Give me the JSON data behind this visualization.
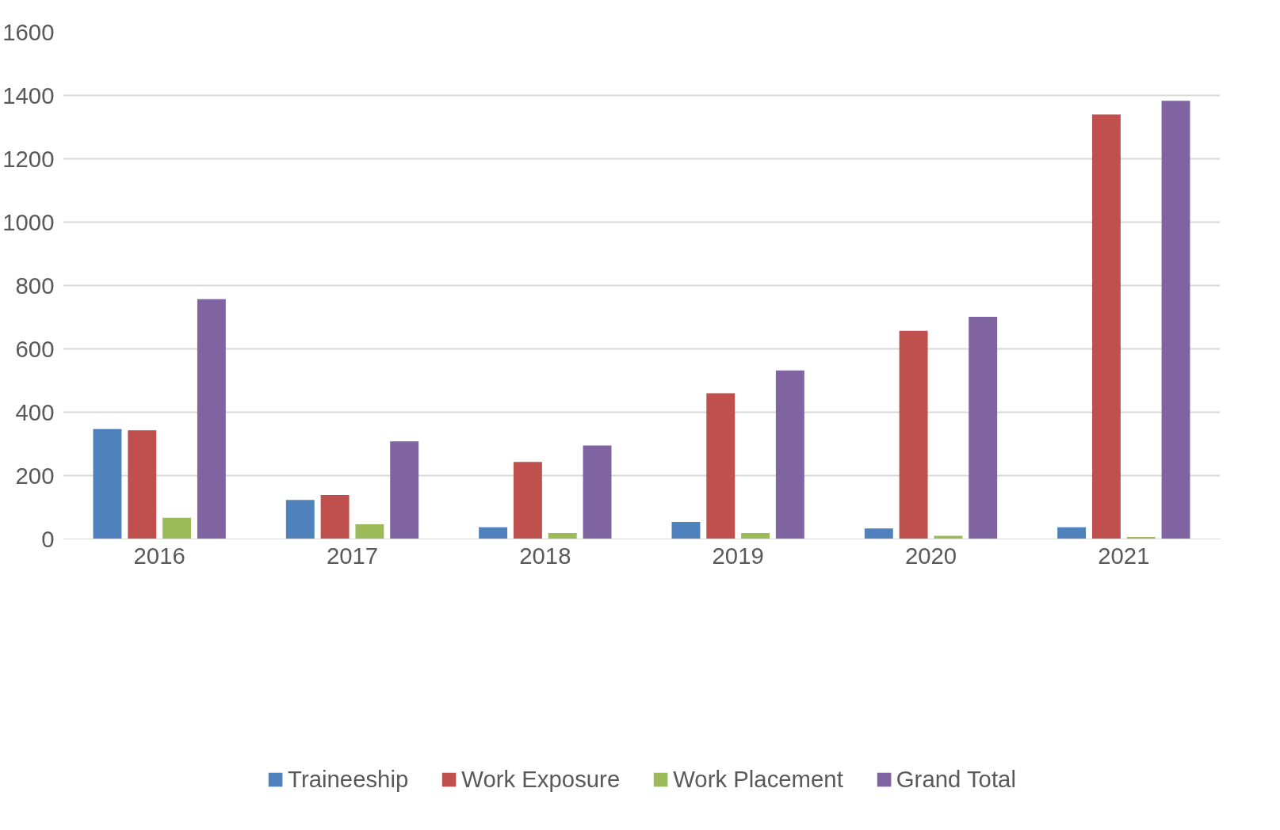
{
  "chart_data": {
    "type": "bar",
    "categories": [
      "2016",
      "2017",
      "2018",
      "2019",
      "2020",
      "2021"
    ],
    "series": [
      {
        "name": "Traineeship",
        "color": "#4f81bd",
        "values": [
          347,
          123,
          37,
          54,
          33,
          37
        ]
      },
      {
        "name": "Work Exposure",
        "color": "#c0504d",
        "values": [
          343,
          139,
          243,
          460,
          657,
          1340
        ]
      },
      {
        "name": "Work Placement",
        "color": "#9bbb59",
        "values": [
          67,
          46,
          19,
          19,
          10,
          6
        ]
      },
      {
        "name": "Grand Total",
        "color": "#8064a2",
        "values": [
          757,
          308,
          295,
          532,
          701,
          1383
        ]
      }
    ],
    "ylim": [
      0,
      1600
    ],
    "yticks": [
      0,
      200,
      400,
      600,
      800,
      1000,
      1200,
      1400,
      1600
    ],
    "grid": "y",
    "legend": "bottom"
  }
}
